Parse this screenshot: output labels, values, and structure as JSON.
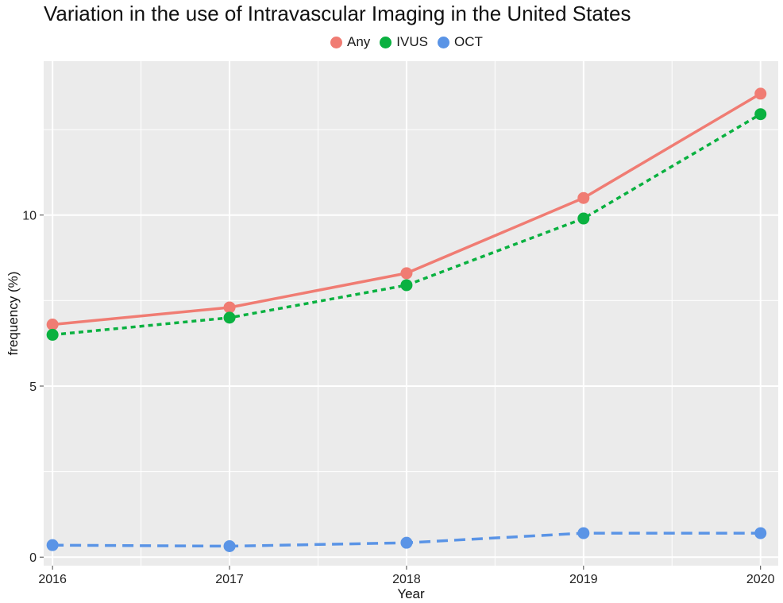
{
  "chart_data": {
    "type": "line",
    "title": "Variation in the use of Intravascular Imaging in the United States",
    "xlabel": "Year",
    "ylabel": "frequency (%)",
    "x": [
      2016,
      2017,
      2018,
      2019,
      2020
    ],
    "x_tick_labels": [
      "2016",
      "2017",
      "2018",
      "2019",
      "2020"
    ],
    "y_ticks": [
      0,
      5,
      10
    ],
    "y_tick_labels": [
      "0",
      "5",
      "10"
    ],
    "xlim": [
      2015.95,
      2020.1
    ],
    "ylim": [
      -0.25,
      14.5
    ],
    "grid": true,
    "legend_position": "top",
    "series": [
      {
        "name": "Any",
        "values": [
          6.8,
          7.3,
          8.3,
          10.5,
          13.55
        ],
        "color": "#f07c73",
        "line_style": "solid"
      },
      {
        "name": "IVUS",
        "values": [
          6.5,
          7.0,
          7.95,
          9.9,
          12.95
        ],
        "color": "#0ab140",
        "line_style": "dotted"
      },
      {
        "name": "OCT",
        "values": [
          0.35,
          0.32,
          0.42,
          0.7,
          0.7
        ],
        "color": "#5a94e6",
        "line_style": "dashed"
      }
    ]
  }
}
